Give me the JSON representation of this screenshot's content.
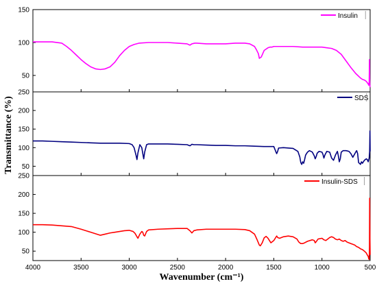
{
  "chart_data": {
    "type": "line",
    "xlabel": "Wavenumber (cm⁻¹)",
    "ylabel": "Transmittance (%)",
    "xlim": [
      4000,
      500
    ],
    "xticks": [
      4000,
      3500,
      3000,
      2500,
      2000,
      1500,
      1000,
      500
    ],
    "panels": [
      {
        "name": "Insulin",
        "color": "#ff00ff",
        "ylim": [
          25,
          150
        ],
        "yticks": [
          50,
          100,
          150
        ],
        "x": [
          4000,
          3900,
          3800,
          3700,
          3650,
          3600,
          3550,
          3500,
          3450,
          3400,
          3350,
          3300,
          3250,
          3200,
          3150,
          3100,
          3050,
          3000,
          2950,
          2900,
          2800,
          2700,
          2600,
          2500,
          2400,
          2370,
          2350,
          2320,
          2300,
          2200,
          2100,
          2000,
          1900,
          1800,
          1750,
          1700,
          1680,
          1660,
          1650,
          1630,
          1600,
          1560,
          1540,
          1520,
          1500,
          1450,
          1400,
          1300,
          1200,
          1100,
          1000,
          950,
          900,
          850,
          800,
          750,
          700,
          650,
          600,
          580,
          560,
          540,
          530,
          520,
          515,
          510,
          507,
          505,
          503,
          501
        ],
        "y": [
          101,
          101,
          101,
          99,
          94,
          88,
          81,
          74,
          68,
          63,
          60,
          59,
          60,
          63,
          70,
          80,
          88,
          94,
          97,
          99,
          100,
          100,
          100,
          99,
          98,
          96,
          98,
          99,
          99,
          98,
          98,
          98,
          99,
          99,
          98,
          94,
          89,
          83,
          76,
          78,
          88,
          92,
          93,
          93,
          94,
          94,
          94,
          94,
          93,
          93,
          93,
          92,
          91,
          88,
          82,
          72,
          62,
          53,
          46,
          44,
          43,
          41,
          39,
          37,
          35,
          40,
          74,
          45,
          36,
          32
        ]
      },
      {
        "name": "SDS",
        "color": "#000080",
        "ylim": [
          25,
          250
        ],
        "yticks": [
          50,
          100,
          150,
          200,
          250
        ],
        "x": [
          4000,
          3900,
          3800,
          3700,
          3600,
          3500,
          3400,
          3300,
          3200,
          3100,
          3000,
          2970,
          2950,
          2930,
          2920,
          2910,
          2890,
          2870,
          2860,
          2850,
          2840,
          2820,
          2800,
          2700,
          2600,
          2500,
          2400,
          2370,
          2350,
          2330,
          2300,
          2200,
          2100,
          2000,
          1900,
          1800,
          1700,
          1600,
          1500,
          1480,
          1470,
          1460,
          1450,
          1400,
          1300,
          1250,
          1230,
          1220,
          1210,
          1200,
          1190,
          1180,
          1170,
          1150,
          1130,
          1100,
          1080,
          1070,
          1060,
          1050,
          1030,
          1000,
          990,
          980,
          970,
          950,
          920,
          900,
          880,
          860,
          840,
          830,
          820,
          810,
          800,
          780,
          750,
          720,
          700,
          680,
          650,
          640,
          630,
          620,
          600,
          590,
          580,
          560,
          540,
          530,
          520,
          510,
          505,
          502,
          500
        ],
        "y": [
          118,
          118,
          117,
          116,
          115,
          114,
          113,
          112,
          112,
          112,
          111,
          108,
          100,
          80,
          68,
          86,
          108,
          100,
          85,
          70,
          88,
          108,
          110,
          110,
          110,
          109,
          108,
          105,
          109,
          108,
          108,
          107,
          106,
          106,
          105,
          105,
          104,
          103,
          103,
          90,
          84,
          90,
          99,
          100,
          98,
          90,
          75,
          60,
          55,
          62,
          58,
          68,
          80,
          88,
          92,
          88,
          78,
          70,
          76,
          85,
          90,
          88,
          82,
          72,
          80,
          90,
          88,
          72,
          66,
          80,
          90,
          78,
          62,
          70,
          88,
          92,
          92,
          90,
          84,
          74,
          88,
          92,
          84,
          60,
          55,
          62,
          58,
          66,
          70,
          68,
          62,
          72,
          90,
          145,
          90
        ]
      },
      {
        "name": "Insulin-SDS",
        "color": "#ff0000",
        "ylim": [
          25,
          250
        ],
        "yticks": [
          50,
          100,
          150,
          200,
          250
        ],
        "x": [
          4000,
          3900,
          3800,
          3700,
          3600,
          3500,
          3400,
          3350,
          3300,
          3250,
          3200,
          3150,
          3100,
          3050,
          3000,
          2960,
          2940,
          2920,
          2910,
          2890,
          2870,
          2860,
          2850,
          2840,
          2820,
          2800,
          2700,
          2600,
          2500,
          2400,
          2370,
          2350,
          2330,
          2300,
          2200,
          2100,
          2000,
          1900,
          1800,
          1750,
          1700,
          1680,
          1660,
          1650,
          1640,
          1620,
          1600,
          1580,
          1560,
          1540,
          1530,
          1520,
          1500,
          1480,
          1470,
          1460,
          1440,
          1400,
          1350,
          1300,
          1260,
          1240,
          1220,
          1200,
          1180,
          1150,
          1100,
          1080,
          1070,
          1060,
          1040,
          1000,
          980,
          960,
          940,
          920,
          900,
          880,
          860,
          840,
          820,
          800,
          780,
          760,
          740,
          720,
          700,
          680,
          660,
          640,
          620,
          600,
          580,
          560,
          540,
          530,
          520,
          515,
          510,
          507,
          505,
          502,
          500
        ],
        "y": [
          120,
          120,
          119,
          117,
          115,
          108,
          100,
          96,
          92,
          95,
          98,
          100,
          102,
          104,
          105,
          102,
          97,
          88,
          84,
          95,
          102,
          100,
          92,
          90,
          102,
          106,
          108,
          109,
          110,
          110,
          104,
          98,
          104,
          106,
          108,
          108,
          108,
          108,
          107,
          104,
          95,
          84,
          72,
          66,
          64,
          72,
          85,
          89,
          84,
          76,
          72,
          74,
          78,
          86,
          90,
          86,
          84,
          88,
          90,
          88,
          82,
          74,
          70,
          70,
          72,
          76,
          80,
          78,
          72,
          75,
          82,
          84,
          80,
          78,
          82,
          86,
          88,
          86,
          82,
          80,
          82,
          78,
          76,
          78,
          74,
          72,
          70,
          68,
          66,
          62,
          60,
          56,
          54,
          50,
          45,
          40,
          36,
          30,
          28,
          60,
          190,
          80,
          40
        ]
      }
    ]
  }
}
